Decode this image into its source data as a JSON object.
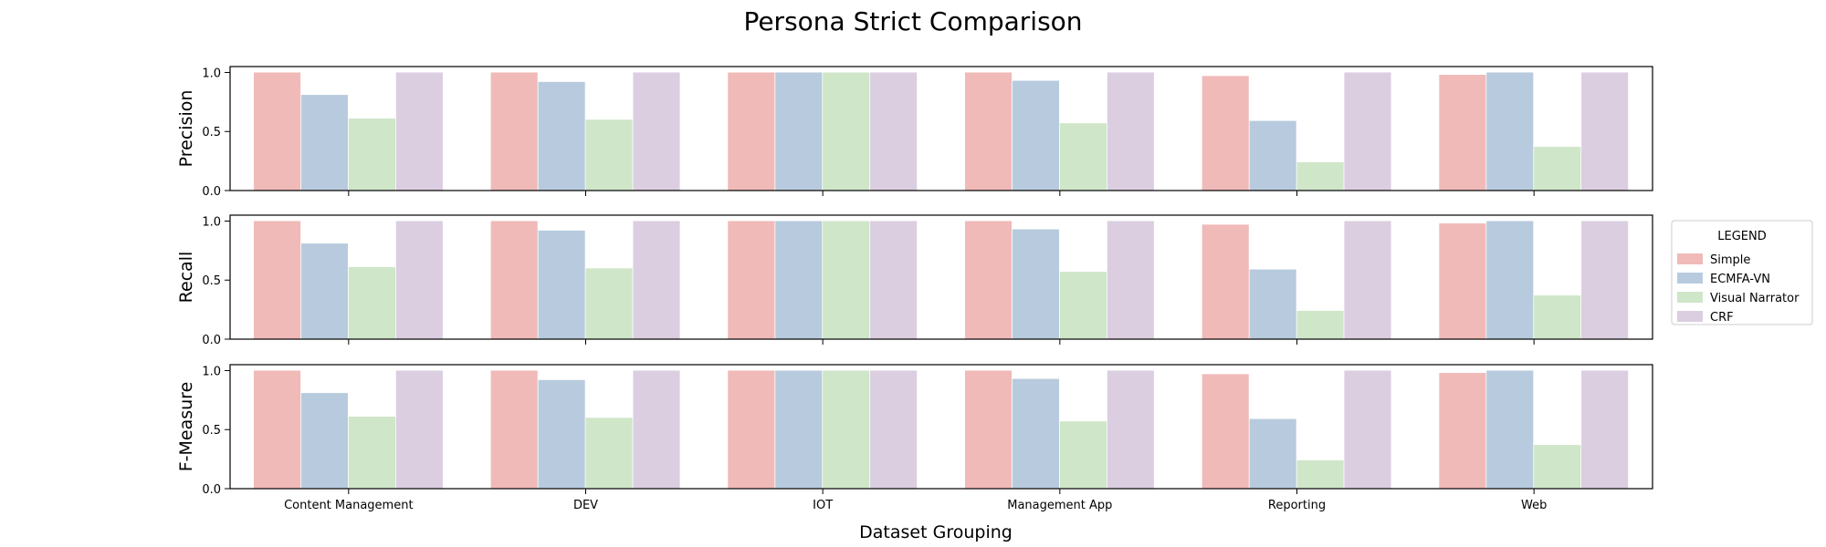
{
  "chart_data": {
    "type": "bar",
    "title": "Persona Strict Comparison",
    "xlabel": "Dataset Grouping",
    "categories": [
      "Content Management",
      "DEV",
      "IOT",
      "Management App",
      "Reporting",
      "Web"
    ],
    "ylim": [
      0,
      1.05
    ],
    "yticks": [
      "0.0",
      "0.5",
      "1.0"
    ],
    "legend": {
      "title": "LEGEND",
      "placement": "center-right outside",
      "entries": [
        "Simple",
        "ECMFA-VN",
        "Visual Narrator",
        "CRF"
      ]
    },
    "colors": [
      "#f0bab8",
      "#b8cbde",
      "#cfe6c9",
      "#dacee0"
    ],
    "panels": [
      {
        "ylabel": "Precision",
        "series": [
          {
            "name": "Simple",
            "values": [
              1.0,
              1.0,
              1.0,
              1.0,
              0.97,
              0.98
            ]
          },
          {
            "name": "ECMFA-VN",
            "values": [
              0.81,
              0.92,
              1.0,
              0.93,
              0.59,
              1.0
            ]
          },
          {
            "name": "Visual Narrator",
            "values": [
              0.61,
              0.6,
              1.0,
              0.57,
              0.24,
              0.37
            ]
          },
          {
            "name": "CRF",
            "values": [
              1.0,
              1.0,
              1.0,
              1.0,
              1.0,
              1.0
            ]
          }
        ]
      },
      {
        "ylabel": "Recall",
        "series": [
          {
            "name": "Simple",
            "values": [
              1.0,
              1.0,
              1.0,
              1.0,
              0.97,
              0.98
            ]
          },
          {
            "name": "ECMFA-VN",
            "values": [
              0.81,
              0.92,
              1.0,
              0.93,
              0.59,
              1.0
            ]
          },
          {
            "name": "Visual Narrator",
            "values": [
              0.61,
              0.6,
              1.0,
              0.57,
              0.24,
              0.37
            ]
          },
          {
            "name": "CRF",
            "values": [
              1.0,
              1.0,
              1.0,
              1.0,
              1.0,
              1.0
            ]
          }
        ]
      },
      {
        "ylabel": "F-Measure",
        "series": [
          {
            "name": "Simple",
            "values": [
              1.0,
              1.0,
              1.0,
              1.0,
              0.97,
              0.98
            ]
          },
          {
            "name": "ECMFA-VN",
            "values": [
              0.81,
              0.92,
              1.0,
              0.93,
              0.59,
              1.0
            ]
          },
          {
            "name": "Visual Narrator",
            "values": [
              0.61,
              0.6,
              1.0,
              0.57,
              0.24,
              0.37
            ]
          },
          {
            "name": "CRF",
            "values": [
              1.0,
              1.0,
              1.0,
              1.0,
              1.0,
              1.0
            ]
          }
        ]
      }
    ]
  }
}
